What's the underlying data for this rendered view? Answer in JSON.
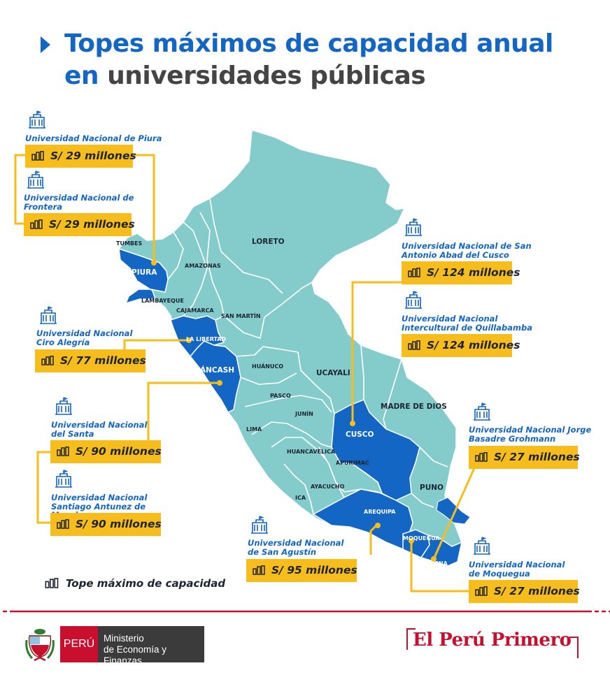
{
  "title": {
    "line1": "Topes máximos de capacidad anual",
    "line2_blue": "en",
    "line2_rest": "universidades públicas"
  },
  "regions": {
    "tumbes": "TUMBES",
    "piura": "PIURA",
    "lambayeque": "LAMBAYEQUE",
    "amazonas": "AMAZONAS",
    "cajamarca": "CAJAMARCA",
    "loreto": "LORETO",
    "san_martin": "SAN MARTÍN",
    "la_libertad": "LA LIBERTAD",
    "ancash": "ÁNCASH",
    "huanuco": "HUÁNUCO",
    "ucayali": "UCAYALI",
    "pasco": "PASCO",
    "lima": "LIMA",
    "junin": "JUNÍN",
    "madre_de_dios": "MADRE DE DIOS",
    "cusco": "CUSCO",
    "huancavelica": "HUANCAVELICA",
    "apurimac": "APURIMAC",
    "ayacucho": "AYACUCHO",
    "ica": "ICA",
    "puno": "PUNO",
    "arequipa": "AREQUIPA",
    "moquegua": "MOQUEGUA",
    "tacna": "TACNA"
  },
  "universities": [
    {
      "name": "Universidad Nacional de Piura",
      "cap": "S/ 29 millones"
    },
    {
      "name": "Universidad Nacional de Frontera",
      "cap": "S/ 29 millones"
    },
    {
      "name": "Universidad Nacional Ciro Alegría",
      "cap": "S/ 77 millones"
    },
    {
      "name": "Universidad Nacional del Santa",
      "cap": "S/ 90 millones"
    },
    {
      "name": "Universidad Nacional Santiago Antunez de Mayolo",
      "cap": "S/ 90 millones"
    },
    {
      "name": "Universidad Nacional de San Antonio Abad del Cusco",
      "cap": "S/ 124 millones"
    },
    {
      "name": "Universidad Nacional Intercultural de Quillabamba",
      "cap": "S/ 124 millones"
    },
    {
      "name": "Universidad Nacional Jorge Basadre Grohmann",
      "cap": "S/ 27 millones"
    },
    {
      "name": "Universidad Nacional de San Agustín",
      "cap": "S/ 95 millones"
    },
    {
      "name": "Universidad Nacional de Moquegua",
      "cap": "S/ 27 millones"
    }
  ],
  "legend": "Tope máximo de capacidad",
  "footer": {
    "peru": "PERÚ",
    "ministry_line1": "Ministerio",
    "ministry_line2": "de Economía y Finanzas",
    "brand": "El Perú Primero"
  },
  "colors": {
    "highlight_region": "#1466c4",
    "other_region": "#83cccb",
    "lake": "#1466c4",
    "capacity_box": "#f7bd1c",
    "connector": "#f7bd1c",
    "brand_red": "#c8102e"
  },
  "icons": {
    "building": "university-building-icon",
    "capacity": "capacity-bars-icon"
  }
}
